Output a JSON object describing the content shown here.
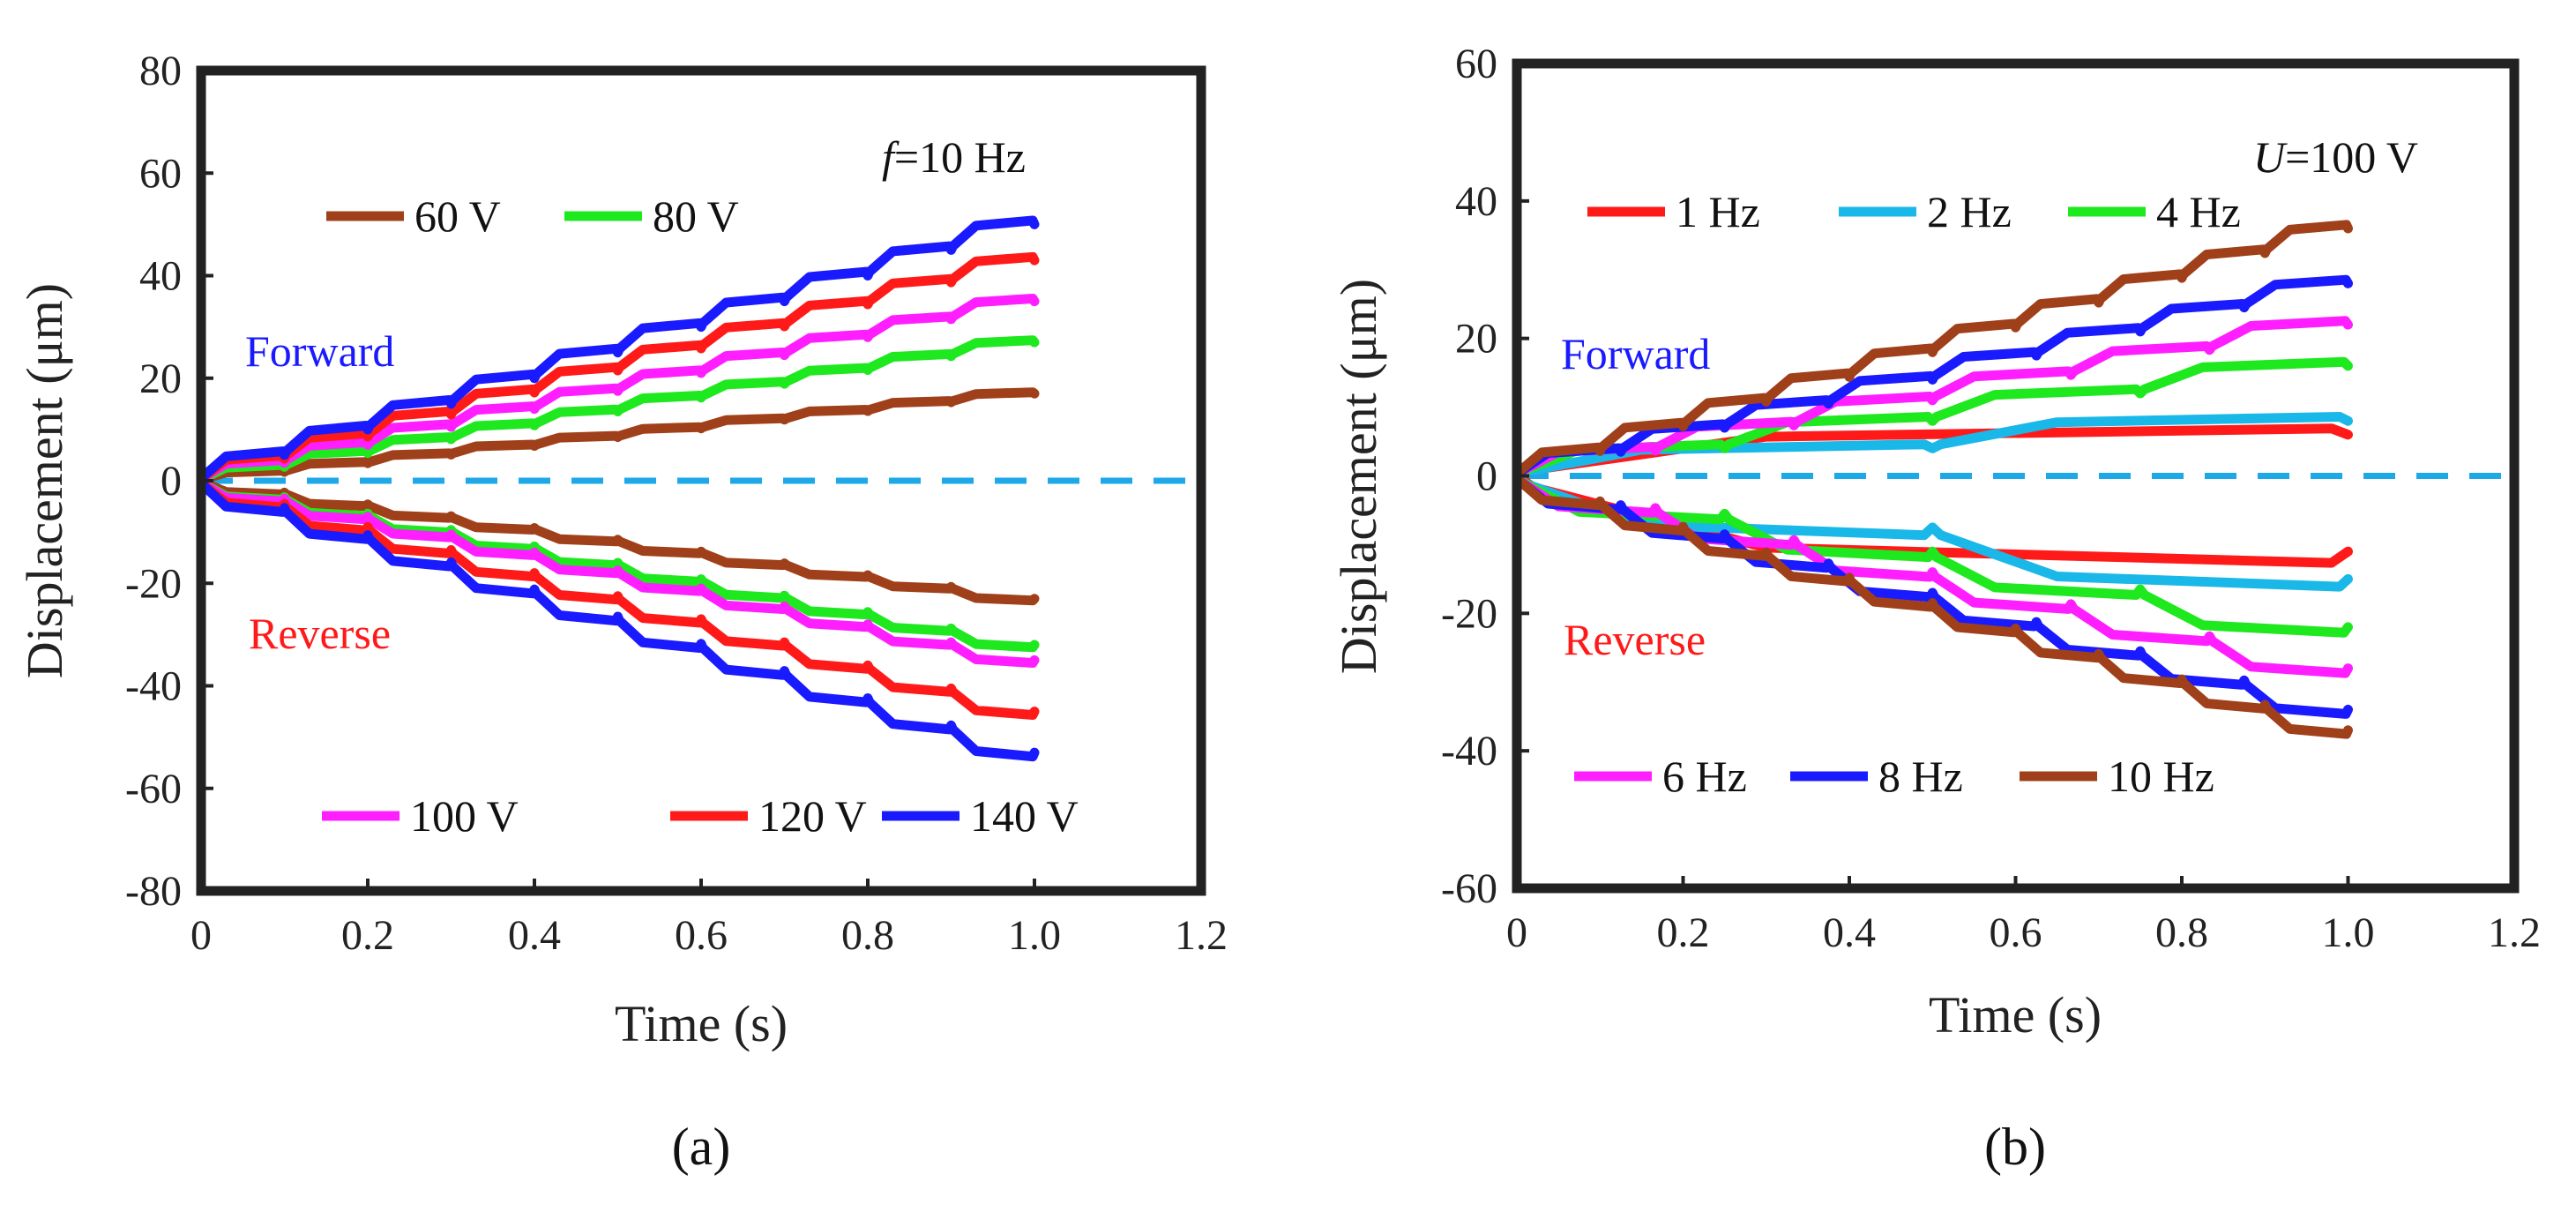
{
  "chart_data": [
    {
      "type": "line",
      "panel": "a",
      "caption": "(a)",
      "xlabel": "Time (s)",
      "ylabel": "Displacement (μm)",
      "xlim": [
        0,
        1.2
      ],
      "ylim": [
        -80,
        80
      ],
      "xticks": [
        "0",
        "0.2",
        "0.4",
        "0.6",
        "0.8",
        "1.0",
        "1.2"
      ],
      "yticks": [
        "80",
        "60",
        "40",
        "20",
        "0",
        "-20",
        "-40",
        "-60",
        "-80"
      ],
      "condition_prefix": "f",
      "condition_text": "=10 Hz",
      "forward_label": "Forward",
      "reverse_label": "Reverse",
      "steps": 10,
      "end_time": 1.0,
      "series": [
        {
          "name": "60 V",
          "color": "#a0401a",
          "forward_end": 17,
          "reverse_end": -23
        },
        {
          "name": "80 V",
          "color": "#1ee81e",
          "forward_end": 27,
          "reverse_end": -32
        },
        {
          "name": "100 V",
          "color": "#ff1eff",
          "forward_end": 35,
          "reverse_end": -35
        },
        {
          "name": "120 V",
          "color": "#ff1a1a",
          "forward_end": 43,
          "reverse_end": -45
        },
        {
          "name": "140 V",
          "color": "#1a1aff",
          "forward_end": 50,
          "reverse_end": -53
        }
      ],
      "baseline": {
        "y": 0,
        "color": "#1ea8e8"
      }
    },
    {
      "type": "line",
      "panel": "b",
      "caption": "(b)",
      "xlabel": "Time (s)",
      "ylabel": "Displacement (μm)",
      "xlim": [
        0,
        1.2
      ],
      "ylim": [
        -60,
        60
      ],
      "xticks": [
        "0",
        "0.2",
        "0.4",
        "0.6",
        "0.8",
        "1.0",
        "1.2"
      ],
      "yticks": [
        "60",
        "40",
        "20",
        "0",
        "-20",
        "-40",
        "-60"
      ],
      "condition_prefix": "U",
      "condition_text": "=100 V",
      "forward_label": "Forward",
      "reverse_label": "Reverse",
      "end_time": 1.0,
      "series": [
        {
          "name": "1 Hz",
          "color": "#ff1a1a",
          "steps": 1,
          "forward_end": 6,
          "reverse_end": -11
        },
        {
          "name": "2 Hz",
          "color": "#1ab8e8",
          "steps": 2,
          "forward_end": 8,
          "reverse_end": -15
        },
        {
          "name": "4 Hz",
          "color": "#1ee81e",
          "steps": 4,
          "forward_end": 16,
          "reverse_end": -22
        },
        {
          "name": "6 Hz",
          "color": "#ff1eff",
          "steps": 6,
          "forward_end": 22,
          "reverse_end": -28
        },
        {
          "name": "8 Hz",
          "color": "#1a1aff",
          "steps": 8,
          "forward_end": 28,
          "reverse_end": -34
        },
        {
          "name": "10 Hz",
          "color": "#a0401a",
          "steps": 10,
          "forward_end": 36,
          "reverse_end": -37
        }
      ],
      "baseline": {
        "y": 0,
        "color": "#1ea8e8"
      }
    }
  ]
}
